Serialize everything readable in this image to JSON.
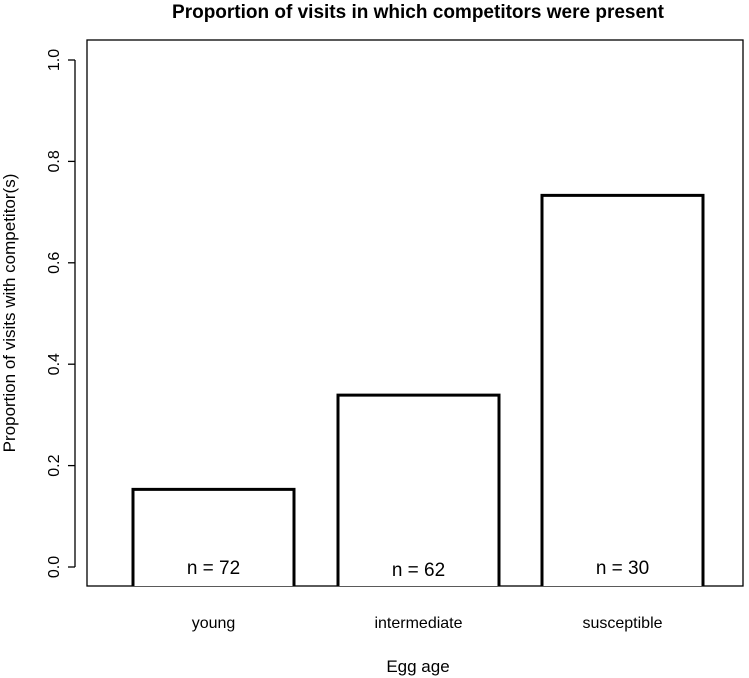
{
  "chart_data": {
    "type": "bar",
    "title": "Proportion of visits in which competitors were present",
    "xlabel": "Egg age",
    "ylabel": "Proportion of visits with competitor(s)",
    "categories": [
      "young",
      "intermediate",
      "susceptible"
    ],
    "values": [
      0.153,
      0.339,
      0.733
    ],
    "annotations": [
      "n = 72",
      "n = 62",
      "n = 30"
    ],
    "ylim": [
      0,
      1.0
    ],
    "yticks": [
      0.0,
      0.2,
      0.4,
      0.6,
      0.8,
      1.0
    ],
    "ytick_labels": [
      "0.0",
      "0.2",
      "0.4",
      "0.6",
      "0.8",
      "1.0"
    ],
    "grid": false,
    "bar_fill": "#ffffff",
    "bar_stroke": "#000000"
  }
}
